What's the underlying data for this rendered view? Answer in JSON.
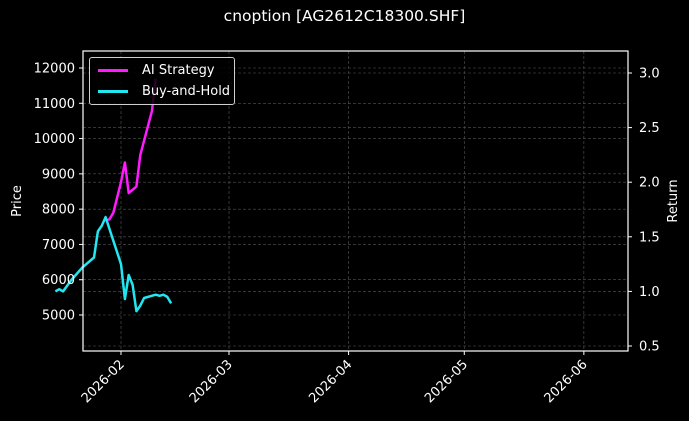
{
  "chart_data": {
    "type": "line",
    "title": "cnoption [AG2612C18300.SHF]",
    "xlabel": "",
    "ylabel": "Price",
    "ylabel_right": "Return",
    "x_ticks": [
      "2026-02",
      "2026-03",
      "2026-04",
      "2026-05",
      "2026-06"
    ],
    "y_ticks_left": [
      5000,
      6000,
      7000,
      8000,
      9000,
      10000,
      11000,
      12000
    ],
    "y_ticks_right": [
      0.5,
      1.0,
      1.5,
      2.0,
      2.5,
      3.0
    ],
    "ylim_left": [
      4050,
      12500
    ],
    "ylim_right": [
      0.45,
      3.2
    ],
    "grid": true,
    "legend_position": "upper left",
    "series": [
      {
        "name": "AI Strategy",
        "color": "#ff1aff",
        "axis": "right",
        "x": [
          "2026-01-28",
          "2026-01-29",
          "2026-01-30",
          "2026-02-01",
          "2026-02-02",
          "2026-02-03",
          "2026-02-05",
          "2026-02-06",
          "2026-02-09",
          "2026-02-10"
        ],
        "values": [
          1.65,
          1.66,
          1.72,
          2.0,
          2.18,
          1.9,
          1.96,
          2.25,
          2.65,
          2.95
        ]
      },
      {
        "name": "Buy-and-Hold",
        "color": "#22e6f0",
        "axis": "right",
        "x": [
          "2026-01-15",
          "2026-01-16",
          "2026-01-17",
          "2026-01-19",
          "2026-01-22",
          "2026-01-25",
          "2026-01-26",
          "2026-01-27",
          "2026-01-28",
          "2026-02-01",
          "2026-02-02",
          "2026-02-03",
          "2026-02-04",
          "2026-02-05",
          "2026-02-06",
          "2026-02-07",
          "2026-02-10",
          "2026-02-11",
          "2026-02-12",
          "2026-02-13",
          "2026-02-14"
        ],
        "values": [
          1.0,
          1.02,
          1.0,
          1.1,
          1.22,
          1.31,
          1.55,
          1.6,
          1.68,
          1.25,
          0.93,
          1.15,
          1.06,
          0.82,
          0.87,
          0.94,
          0.97,
          0.96,
          0.97,
          0.95,
          0.89
        ]
      }
    ]
  },
  "legend": {
    "items": [
      {
        "label": "AI Strategy",
        "color": "#ff1aff"
      },
      {
        "label": "Buy-and-Hold",
        "color": "#22e6f0"
      }
    ]
  }
}
